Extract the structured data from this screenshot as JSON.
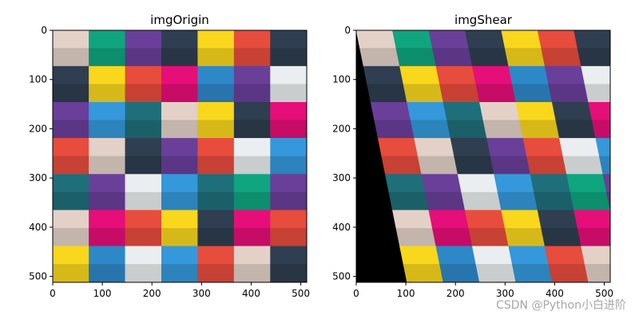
{
  "panels": [
    {
      "id": "origin",
      "title": "imgOrigin",
      "x_ticks": [
        0,
        100,
        200,
        300,
        400,
        500
      ],
      "y_ticks": [
        0,
        100,
        200,
        300,
        400,
        500
      ],
      "x_range": [
        0,
        512
      ],
      "y_range": [
        0,
        512
      ],
      "transform": "none"
    },
    {
      "id": "shear",
      "title": "imgShear",
      "x_ticks": [
        0,
        100,
        200,
        300,
        400,
        500
      ],
      "y_ticks": [
        0,
        100,
        200,
        300,
        400,
        500
      ],
      "x_range": [
        0,
        512
      ],
      "y_range": [
        0,
        512
      ],
      "transform": "shear-x"
    }
  ],
  "grid": {
    "cols": 7,
    "rows": 7,
    "colors": [
      [
        "#e3d1c8",
        "#0fa57f",
        "#6a3f9a",
        "#2f3e50",
        "#f9d71c",
        "#e74c3c",
        "#2f3e50"
      ],
      [
        "#2f3e50",
        "#f9d71c",
        "#e74c3c",
        "#e60e78",
        "#2d88c8",
        "#6a3f9a",
        "#eaeef0"
      ],
      [
        "#6a3f9a",
        "#3498db",
        "#1f6f7a",
        "#e3d1c8",
        "#f9d71c",
        "#2f3e50",
        "#e60e78"
      ],
      [
        "#e74c3c",
        "#e3d1c8",
        "#2f3e50",
        "#6a3f9a",
        "#e74c3c",
        "#eaeef0",
        "#3498db"
      ],
      [
        "#1f6f7a",
        "#6a3f9a",
        "#eaeef0",
        "#3498db",
        "#1f6f7a",
        "#0fa57f",
        "#6a3f9a"
      ],
      [
        "#e3d1c8",
        "#e60e78",
        "#e74c3c",
        "#f9d71c",
        "#2f3e50",
        "#e60e78",
        "#e74c3c"
      ],
      [
        "#f9d71c",
        "#2d88c8",
        "#eaeef0",
        "#3498db",
        "#e74c3c",
        "#e3d1c8",
        "#2f3e50"
      ]
    ]
  },
  "shear_factor": 0.2,
  "watermark": "CSDN @Python小白进阶"
}
